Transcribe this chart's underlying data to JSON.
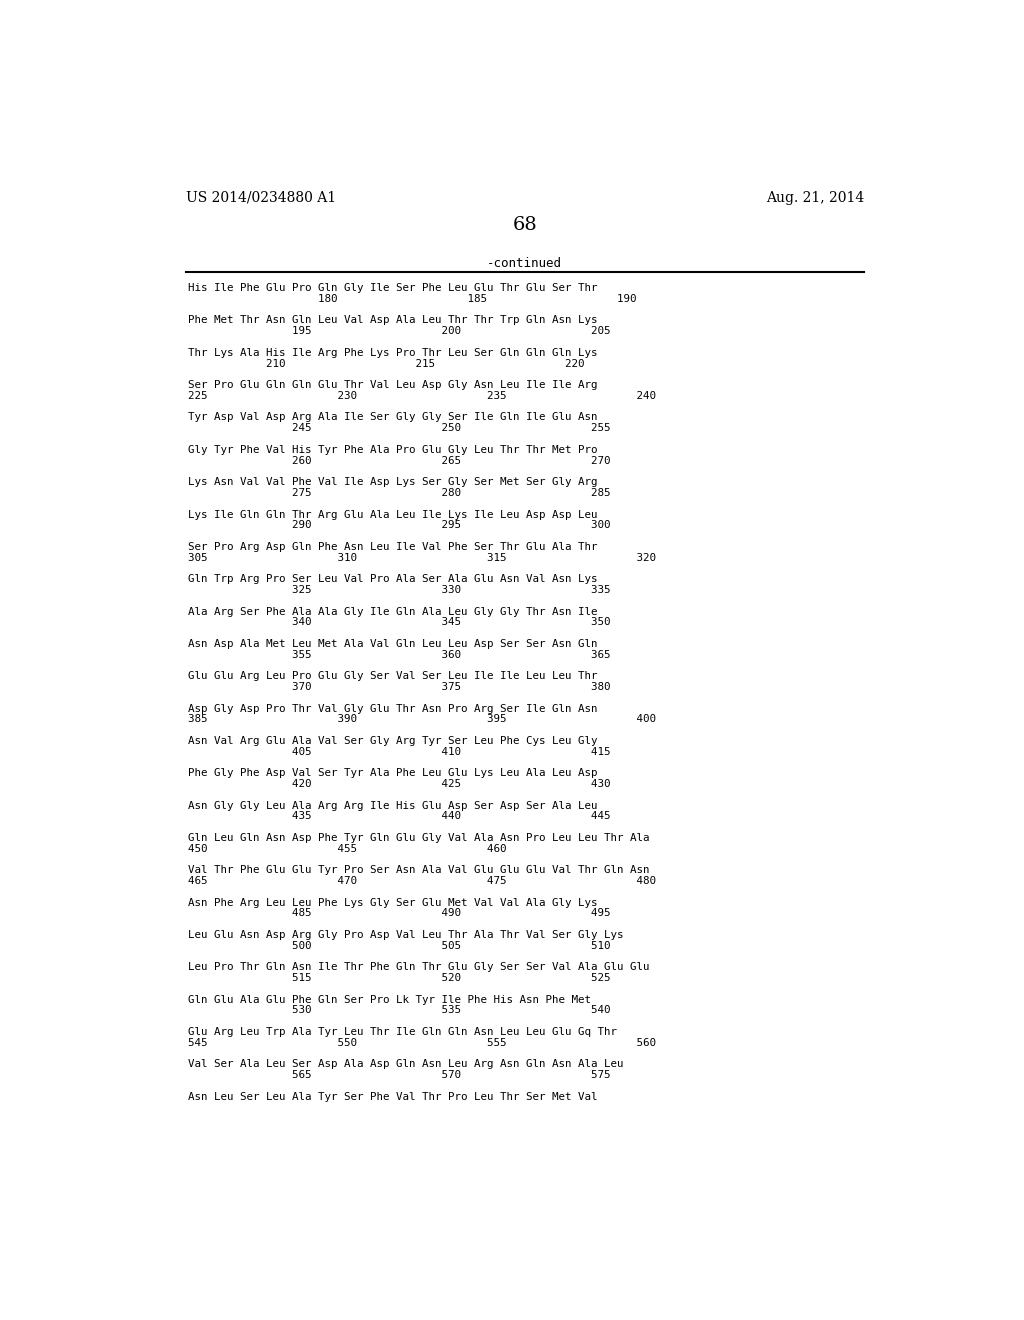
{
  "patent_number": "US 2014/0234880 A1",
  "date": "Aug. 21, 2014",
  "page_number": "68",
  "continued_label": "-continued",
  "background_color": "#ffffff",
  "text_color": "#000000",
  "blocks": [
    [
      "His Ile Phe Glu Pro Gln Gly Ile Ser Phe Leu Glu Thr Glu Ser Thr",
      "                    180                    185                    190"
    ],
    [
      "Phe Met Thr Asn Gln Leu Val Asp Ala Leu Thr Thr Trp Gln Asn Lys",
      "                195                    200                    205"
    ],
    [
      "Thr Lys Ala His Ile Arg Phe Lys Pro Thr Leu Ser Gln Gln Gln Lys",
      "            210                    215                    220"
    ],
    [
      "Ser Pro Glu Gln Gln Glu Thr Val Leu Asp Gly Asn Leu Ile Ile Arg",
      "225                    230                    235                    240"
    ],
    [
      "Tyr Asp Val Asp Arg Ala Ile Ser Gly Gly Ser Ile Gln Ile Glu Asn",
      "                245                    250                    255"
    ],
    [
      "Gly Tyr Phe Val His Tyr Phe Ala Pro Glu Gly Leu Thr Thr Met Pro",
      "                260                    265                    270"
    ],
    [
      "Lys Asn Val Val Phe Val Ile Asp Lys Ser Gly Ser Met Ser Gly Arg",
      "                275                    280                    285"
    ],
    [
      "Lys Ile Gln Gln Thr Arg Glu Ala Leu Ile Lys Ile Leu Asp Asp Leu",
      "                290                    295                    300"
    ],
    [
      "Ser Pro Arg Asp Gln Phe Asn Leu Ile Val Phe Ser Thr Glu Ala Thr",
      "305                    310                    315                    320"
    ],
    [
      "Gln Trp Arg Pro Ser Leu Val Pro Ala Ser Ala Glu Asn Val Asn Lys",
      "                325                    330                    335"
    ],
    [
      "Ala Arg Ser Phe Ala Ala Gly Ile Gln Ala Leu Gly Gly Thr Asn Ile",
      "                340                    345                    350"
    ],
    [
      "Asn Asp Ala Met Leu Met Ala Val Gln Leu Leu Asp Ser Ser Asn Gln",
      "                355                    360                    365"
    ],
    [
      "Glu Glu Arg Leu Pro Glu Gly Ser Val Ser Leu Ile Ile Leu Leu Thr",
      "                370                    375                    380"
    ],
    [
      "Asp Gly Asp Pro Thr Val Gly Glu Thr Asn Pro Arg Ser Ile Gln Asn",
      "385                    390                    395                    400"
    ],
    [
      "Asn Val Arg Glu Ala Val Ser Gly Arg Tyr Ser Leu Phe Cys Leu Gly",
      "                405                    410                    415"
    ],
    [
      "Phe Gly Phe Asp Val Ser Tyr Ala Phe Leu Glu Lys Leu Ala Leu Asp",
      "                420                    425                    430"
    ],
    [
      "Asn Gly Gly Leu Ala Arg Arg Ile His Glu Asp Ser Asp Ser Ala Leu",
      "                435                    440                    445"
    ],
    [
      "Gln Leu Gln Asn Asp Phe Tyr Gln Glu Gly Val Ala Asn Pro Leu Leu Thr Ala",
      "450                    455                    460"
    ],
    [
      "Val Thr Phe Glu Glu Tyr Pro Ser Asn Ala Val Glu Glu Glu Val Thr Gln Asn",
      "465                    470                    475                    480"
    ],
    [
      "Asn Phe Arg Leu Leu Phe Lys Gly Ser Glu Met Val Val Ala Gly Lys",
      "                485                    490                    495"
    ],
    [
      "Leu Glu Asn Asp Arg Gly Pro Asp Val Leu Thr Ala Thr Val Ser Gly Lys",
      "                500                    505                    510"
    ],
    [
      "Leu Pro Thr Gln Asn Ile Thr Phe Gln Thr Glu Gly Ser Ser Val Ala Glu Glu",
      "                515                    520                    525"
    ],
    [
      "Gln Glu Ala Glu Phe Gln Ser Pro Lk Tyr Ile Phe His Asn Phe Met",
      "                530                    535                    540"
    ],
    [
      "Glu Arg Leu Trp Ala Tyr Leu Thr Ile Gln Gln Asn Leu Leu Glu Gq Thr",
      "545                    550                    555                    560"
    ],
    [
      "Val Ser Ala Leu Ser Asp Ala Asp Gln Asn Leu Arg Asn Gln Asn Ala Leu",
      "                565                    570                    575"
    ],
    [
      "Asn Leu Ser Leu Ala Tyr Ser Phe Val Thr Pro Leu Thr Ser Met Val",
      ""
    ]
  ]
}
